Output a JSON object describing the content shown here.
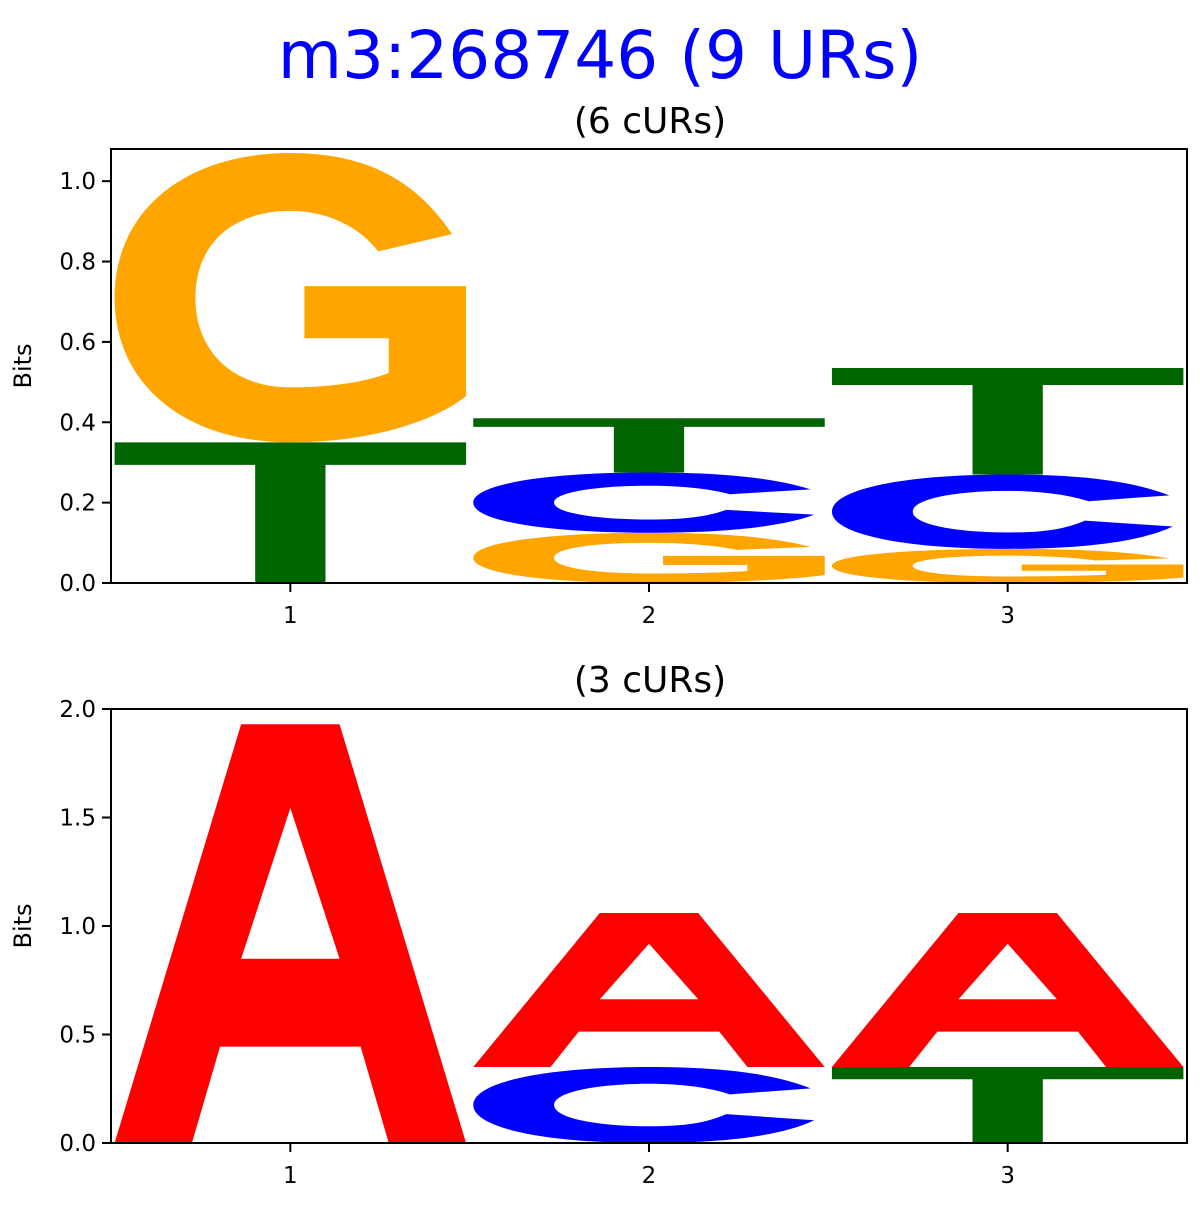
{
  "figure": {
    "title": "m3:268746 (9 URs)",
    "title_color": "#0000ff"
  },
  "colors": {
    "A": "#ff0000",
    "C": "#0000ff",
    "G": "#ffa500",
    "T": "#006400"
  },
  "chart_data": [
    {
      "type": "sequence-logo",
      "title": "(6 cURs)",
      "xlabel": "",
      "ylabel": "Bits",
      "ylim": [
        0,
        1.08
      ],
      "yticks": [
        0.0,
        0.2,
        0.4,
        0.6,
        0.8,
        1.0
      ],
      "ytick_labels": [
        "0.0",
        "0.2",
        "0.4",
        "0.6",
        "0.8",
        "1.0"
      ],
      "positions": [
        1,
        2,
        3
      ],
      "xtick_labels": [
        "1",
        "2",
        "3"
      ],
      "grid": false,
      "stacks": [
        [
          {
            "letter": "T",
            "bits": 0.35
          },
          {
            "letter": "G",
            "bits": 0.72
          }
        ],
        [
          {
            "letter": "G",
            "bits": 0.125
          },
          {
            "letter": "C",
            "bits": 0.15
          },
          {
            "letter": "T",
            "bits": 0.135
          }
        ],
        [
          {
            "letter": "G",
            "bits": 0.085
          },
          {
            "letter": "C",
            "bits": 0.185
          },
          {
            "letter": "T",
            "bits": 0.265
          }
        ]
      ]
    },
    {
      "type": "sequence-logo",
      "title": "(3 cURs)",
      "xlabel": "",
      "ylabel": "Bits",
      "ylim": [
        0,
        2.0
      ],
      "yticks": [
        0.0,
        0.5,
        1.0,
        1.5,
        2.0
      ],
      "ytick_labels": [
        "0.0",
        "0.5",
        "1.0",
        "1.5",
        "2.0"
      ],
      "positions": [
        1,
        2,
        3
      ],
      "xtick_labels": [
        "1",
        "2",
        "3"
      ],
      "grid": false,
      "stacks": [
        [
          {
            "letter": "A",
            "bits": 1.93
          }
        ],
        [
          {
            "letter": "C",
            "bits": 0.35
          },
          {
            "letter": "A",
            "bits": 0.71
          }
        ],
        [
          {
            "letter": "T",
            "bits": 0.35
          },
          {
            "letter": "A",
            "bits": 0.71
          }
        ]
      ]
    }
  ]
}
